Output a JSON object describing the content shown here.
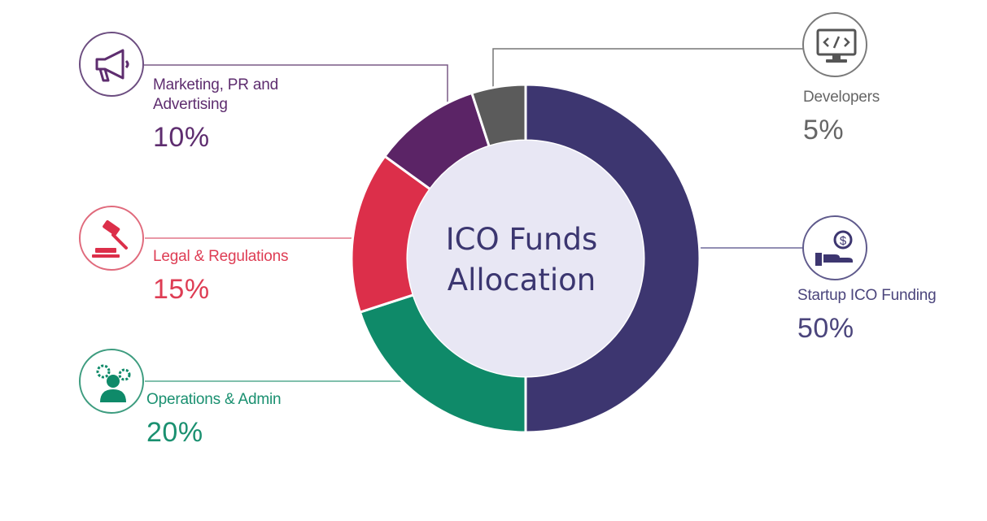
{
  "chart_data": {
    "type": "pie",
    "title": "ICO Funds Allocation",
    "slices": [
      {
        "label": "Startup ICO Funding",
        "value": 50,
        "display": "50%",
        "color": "#3d3670"
      },
      {
        "label": "Operations & Admin",
        "value": 20,
        "display": "20%",
        "color": "#0f8a69"
      },
      {
        "label": "Legal & Regulations",
        "value": 15,
        "display": "15%",
        "color": "#dc2f4a"
      },
      {
        "label": "Marketing, PR and Advertising",
        "value": 10,
        "display": "10%",
        "color": "#5b2466"
      },
      {
        "label": "Developers",
        "value": 5,
        "display": "5%",
        "color": "#5b5b5b"
      }
    ]
  },
  "icons": {
    "startup_ico_funding": "hand-with-dollar-coin-icon",
    "operations_admin": "person-with-gears-icon",
    "legal_regulations": "gavel-icon",
    "marketing": "megaphone-icon",
    "developers": "computer-monitor-code-icon"
  },
  "colors": {
    "center_fill": "#e8e7f4",
    "center_text": "#3b3670",
    "legend_text": {
      "startup": "#4b457c",
      "operations": "#1a9070",
      "legal": "#de3d54",
      "marketing": "#5e2d6f",
      "developers": "#666666"
    }
  }
}
